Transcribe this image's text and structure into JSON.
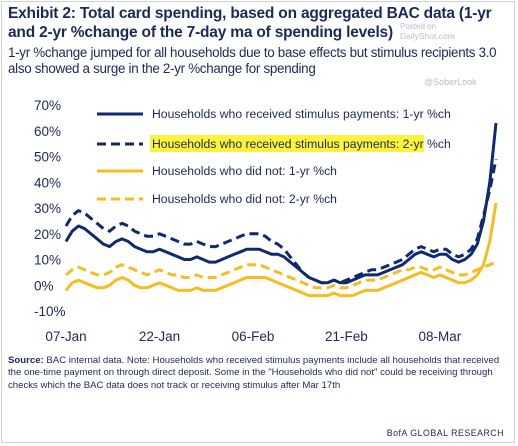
{
  "title": "Exhibit 2: Total card spending, based on aggregated BAC data (1-yr and 2-yr %change of the 7-day ma of spending levels)",
  "subtitle": "1-yr %change jumped for all households due to base effects but stimulus recipients 3.0 also showed a surge in the 2-yr %change for spending",
  "watermarks": {
    "posted": "Posted on",
    "site": "DailyShot.com",
    "handle": "@SoberLook"
  },
  "source_label": "Source:",
  "source_text": "BAC internal data. Note: Households who received stimulus payments include all households that received the one-time payment on through direct deposit. Some in the \"Households who did not\" could be receiving through checks which the BAC data does not track or receiving stimulus after Mar 17th",
  "brand": "BofA GLOBAL RESEARCH",
  "colors": {
    "navy": "#0f2a6e",
    "yellow": "#f5bd1f",
    "highlight": "#fff23a"
  },
  "chart_data": {
    "type": "line",
    "ylim": [
      -10,
      70
    ],
    "yticks": [
      "70%",
      "60%",
      "50%",
      "40%",
      "30%",
      "20%",
      "10%",
      "0%",
      "-10%"
    ],
    "yticks_values": [
      70,
      60,
      50,
      40,
      30,
      20,
      10,
      0,
      -10
    ],
    "x_labels": [
      "07-Jan",
      "22-Jan",
      "06-Feb",
      "21-Feb",
      "08-Mar"
    ],
    "x_label_days": [
      0,
      15,
      30,
      45,
      60
    ],
    "x_range_days": [
      0,
      69
    ],
    "grid": false,
    "legend_position": "top",
    "series": [
      {
        "name": "Households who received stimulus payments: 1-yr %ch",
        "color": "#0f2a6e",
        "dash": "solid",
        "width": 3,
        "highlighted": false,
        "x": [
          0,
          1,
          2,
          3,
          4,
          5,
          6,
          7,
          8,
          9,
          10,
          11,
          12,
          13,
          14,
          15,
          16,
          17,
          18,
          19,
          20,
          21,
          22,
          23,
          24,
          25,
          26,
          27,
          28,
          29,
          30,
          31,
          32,
          33,
          34,
          35,
          36,
          37,
          38,
          39,
          40,
          41,
          42,
          43,
          44,
          45,
          46,
          47,
          48,
          49,
          50,
          51,
          52,
          53,
          54,
          55,
          56,
          57,
          58,
          59,
          60,
          61,
          62,
          63,
          64,
          65,
          66,
          67,
          68,
          69
        ],
        "y": [
          17,
          21,
          23,
          22,
          20,
          18,
          16,
          15,
          17,
          18,
          17,
          15,
          14,
          13,
          13,
          14,
          13,
          12,
          11,
          10,
          10,
          11,
          10,
          9,
          9,
          10,
          11,
          12,
          13,
          14,
          14,
          14,
          13,
          12,
          12,
          11,
          9,
          7,
          5,
          3,
          2,
          1,
          1,
          2,
          1,
          1,
          2,
          3,
          4,
          4,
          4,
          5,
          6,
          7,
          8,
          10,
          12,
          13,
          12,
          11,
          12,
          12,
          10,
          9,
          10,
          12,
          16,
          25,
          40,
          63
        ]
      },
      {
        "name": "Households who received stimulus payments: 2-yr %ch",
        "color": "#0f2a6e",
        "dash": "dashed",
        "width": 3,
        "highlighted": true,
        "x": [
          0,
          1,
          2,
          3,
          4,
          5,
          6,
          7,
          8,
          9,
          10,
          11,
          12,
          13,
          14,
          15,
          16,
          17,
          18,
          19,
          20,
          21,
          22,
          23,
          24,
          25,
          26,
          27,
          28,
          29,
          30,
          31,
          32,
          33,
          34,
          35,
          36,
          37,
          38,
          39,
          40,
          41,
          42,
          43,
          44,
          45,
          46,
          47,
          48,
          49,
          50,
          51,
          52,
          53,
          54,
          55,
          56,
          57,
          58,
          59,
          60,
          61,
          62,
          63,
          64,
          65,
          66,
          67,
          68,
          69
        ],
        "y": [
          23,
          27,
          29,
          28,
          26,
          24,
          22,
          21,
          23,
          24,
          23,
          21,
          20,
          19,
          19,
          20,
          19,
          18,
          17,
          16,
          16,
          17,
          16,
          15,
          15,
          16,
          17,
          18,
          19,
          20,
          20,
          20,
          19,
          17,
          16,
          14,
          11,
          8,
          5,
          3,
          2,
          1,
          1,
          2,
          1,
          2,
          3,
          4,
          5,
          6,
          6,
          7,
          8,
          9,
          10,
          12,
          14,
          15,
          14,
          13,
          14,
          14,
          12,
          11,
          12,
          14,
          18,
          27,
          37,
          49
        ]
      },
      {
        "name": "Households who did not: 1-yr %ch",
        "color": "#f5bd1f",
        "dash": "solid",
        "width": 3,
        "highlighted": false,
        "x": [
          0,
          1,
          2,
          3,
          4,
          5,
          6,
          7,
          8,
          9,
          10,
          11,
          12,
          13,
          14,
          15,
          16,
          17,
          18,
          19,
          20,
          21,
          22,
          23,
          24,
          25,
          26,
          27,
          28,
          29,
          30,
          31,
          32,
          33,
          34,
          35,
          36,
          37,
          38,
          39,
          40,
          41,
          42,
          43,
          44,
          45,
          46,
          47,
          48,
          49,
          50,
          51,
          52,
          53,
          54,
          55,
          56,
          57,
          58,
          59,
          60,
          61,
          62,
          63,
          64,
          65,
          66,
          67,
          68,
          69
        ],
        "y": [
          -2,
          1,
          2,
          1,
          0,
          -1,
          -1,
          0,
          2,
          3,
          2,
          0,
          -1,
          -1,
          0,
          1,
          0,
          -1,
          -2,
          -2,
          -2,
          -1,
          -2,
          -2,
          -2,
          -1,
          0,
          1,
          2,
          3,
          3,
          3,
          3,
          2,
          1,
          0,
          -1,
          -2,
          -3,
          -4,
          -4,
          -4,
          -4,
          -3,
          -4,
          -4,
          -4,
          -3,
          -2,
          -2,
          -2,
          -1,
          0,
          1,
          2,
          3,
          4,
          5,
          4,
          3,
          4,
          3,
          2,
          1,
          1,
          2,
          4,
          8,
          17,
          32
        ]
      },
      {
        "name": "Households who did not: 2-yr %ch",
        "color": "#f5bd1f",
        "dash": "dashed",
        "width": 3,
        "highlighted": false,
        "x": [
          0,
          1,
          2,
          3,
          4,
          5,
          6,
          7,
          8,
          9,
          10,
          11,
          12,
          13,
          14,
          15,
          16,
          17,
          18,
          19,
          20,
          21,
          22,
          23,
          24,
          25,
          26,
          27,
          28,
          29,
          30,
          31,
          32,
          33,
          34,
          35,
          36,
          37,
          38,
          39,
          40,
          41,
          42,
          43,
          44,
          45,
          46,
          47,
          48,
          49,
          50,
          51,
          52,
          53,
          54,
          55,
          56,
          57,
          58,
          59,
          60,
          61,
          62,
          63,
          64,
          65,
          66,
          67,
          68,
          69
        ],
        "y": [
          4,
          6,
          7,
          6,
          5,
          4,
          4,
          5,
          7,
          8,
          7,
          6,
          5,
          4,
          5,
          6,
          5,
          4,
          4,
          3,
          3,
          4,
          3,
          3,
          3,
          4,
          5,
          6,
          7,
          8,
          8,
          8,
          7,
          6,
          5,
          4,
          3,
          2,
          1,
          0,
          -1,
          -1,
          -1,
          0,
          -1,
          -1,
          0,
          1,
          2,
          2,
          2,
          3,
          4,
          5,
          6,
          6,
          7,
          7,
          6,
          6,
          7,
          6,
          5,
          4,
          4,
          5,
          6,
          7,
          8,
          9
        ]
      }
    ]
  }
}
